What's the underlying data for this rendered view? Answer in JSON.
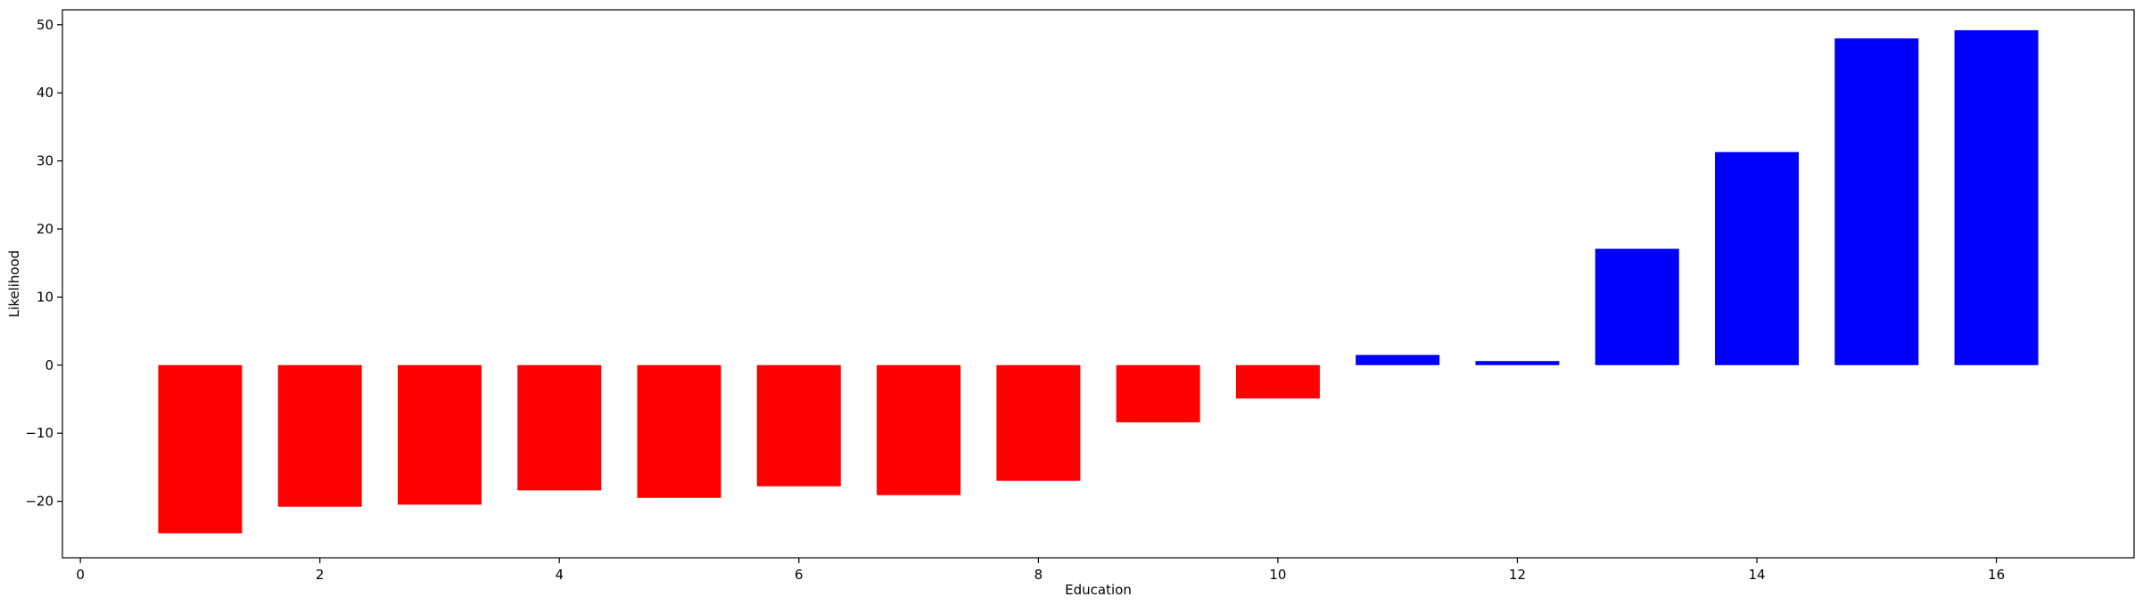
{
  "chart_data": {
    "type": "bar",
    "title": "",
    "xlabel": "Education",
    "ylabel": "Likelihood",
    "x": [
      1,
      2,
      3,
      4,
      5,
      6,
      7,
      8,
      9,
      10,
      11,
      12,
      13,
      14,
      15,
      16
    ],
    "values": [
      -24.7,
      -20.8,
      -20.5,
      -18.4,
      -19.5,
      -17.8,
      -19.1,
      -17.0,
      -8.4,
      -4.9,
      1.5,
      0.6,
      17.1,
      31.3,
      48.0,
      49.2
    ],
    "colors": {
      "negative": "#ff0000",
      "positive": "#0000ff"
    },
    "xlim": [
      -0.15,
      17.15
    ],
    "ylim": [
      -28.3,
      52.2
    ],
    "xticks": [
      0,
      2,
      4,
      6,
      8,
      10,
      12,
      14,
      16
    ],
    "xtick_labels": [
      "0",
      "2",
      "4",
      "6",
      "8",
      "10",
      "12",
      "14",
      "16"
    ],
    "yticks": [
      -20,
      -10,
      0,
      10,
      20,
      30,
      40,
      50
    ],
    "ytick_labels": [
      "−20",
      "−10",
      "0",
      "10",
      "20",
      "30",
      "40",
      "50"
    ],
    "bar_width": 0.7,
    "grid": false,
    "legend": "none"
  }
}
